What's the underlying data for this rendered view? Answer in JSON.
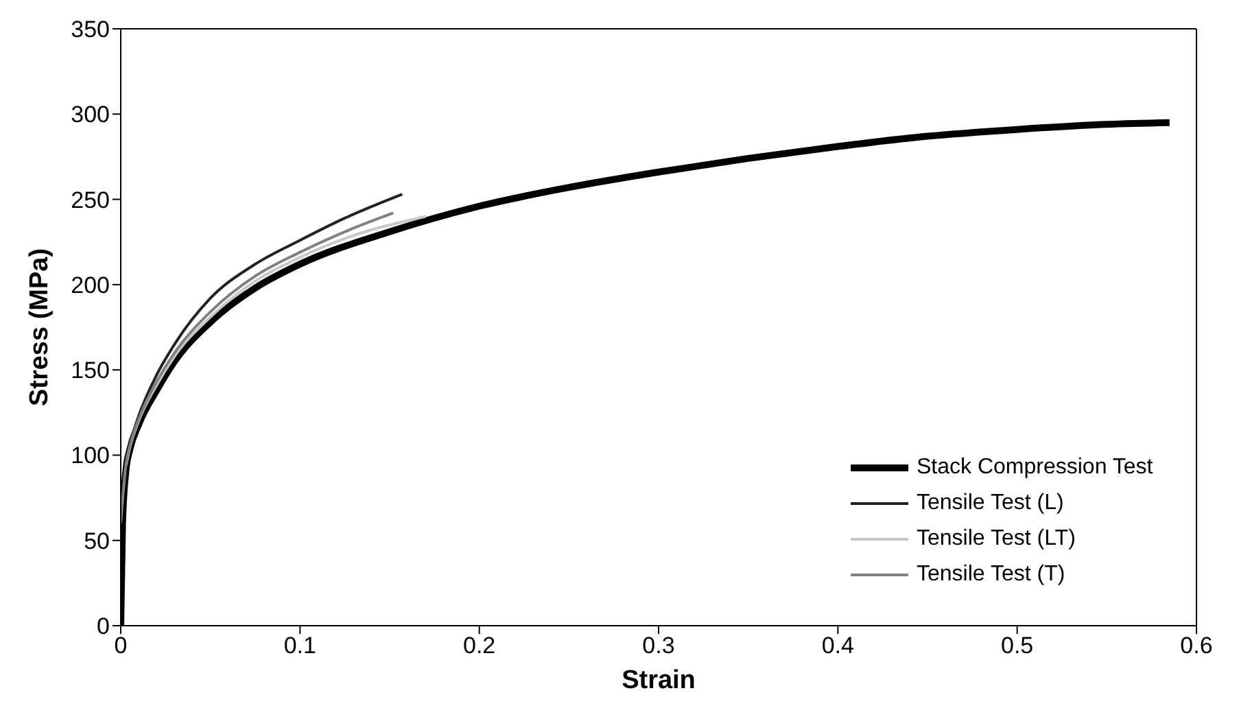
{
  "chart_data": {
    "type": "line",
    "xlabel": "Strain",
    "ylabel": "Stress (MPa)",
    "xlim": [
      0,
      0.6
    ],
    "xticks": [
      0,
      0.1,
      0.2,
      0.3,
      0.4,
      0.5,
      0.6
    ],
    "ylim": [
      0,
      350
    ],
    "yticks": [
      0,
      50,
      100,
      150,
      200,
      250,
      300,
      350
    ],
    "grid": false,
    "legend": "bottom right",
    "marker": "none",
    "line_style": "solid",
    "series": [
      {
        "name": "Stack Compression Test",
        "color": "#000000",
        "x": [
          0,
          0.001,
          0.003,
          0.005,
          0.01,
          0.02,
          0.03,
          0.05,
          0.075,
          0.1,
          0.15,
          0.2,
          0.25,
          0.3,
          0.35,
          0.4,
          0.45,
          0.5,
          0.55,
          0.585
        ],
        "values": [
          0,
          60,
          92,
          103,
          118,
          138,
          155,
          178,
          198,
          212,
          231,
          246,
          257,
          266,
          274,
          281,
          287,
          291,
          294,
          295
        ]
      },
      {
        "name": "Tensile Test (L)",
        "color": "#222222",
        "x": [
          0,
          0.003,
          0.005,
          0.01,
          0.02,
          0.03,
          0.05,
          0.075,
          0.1,
          0.125,
          0.157
        ],
        "values": [
          60,
          97,
          106,
          123,
          147,
          165,
          192,
          212,
          226,
          239,
          253
        ]
      },
      {
        "name": "Tensile Test (LT)",
        "color": "#c8c8c8",
        "x": [
          0.003,
          0.005,
          0.01,
          0.02,
          0.03,
          0.05,
          0.075,
          0.1,
          0.125,
          0.17
        ],
        "values": [
          94,
          104,
          120,
          141,
          158,
          181,
          202,
          216,
          227,
          240
        ]
      },
      {
        "name": "Tensile Test (T)",
        "color": "#808080",
        "x": [
          0,
          0.003,
          0.005,
          0.01,
          0.02,
          0.03,
          0.05,
          0.075,
          0.1,
          0.125,
          0.152
        ],
        "values": [
          60,
          95,
          105,
          121,
          143,
          160,
          184,
          205,
          219,
          231,
          242
        ]
      }
    ]
  }
}
